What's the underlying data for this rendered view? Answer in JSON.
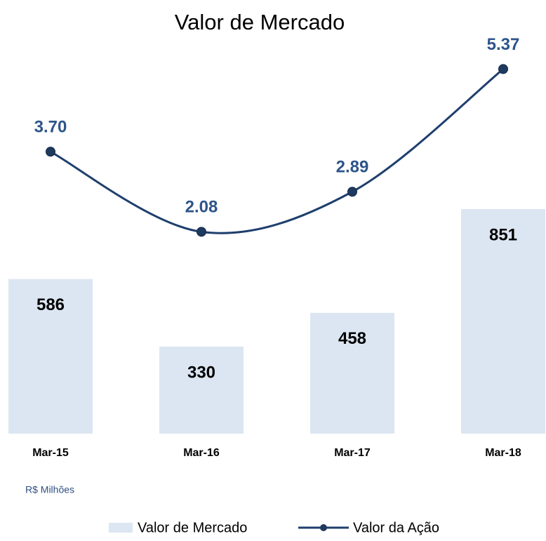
{
  "chart_data": {
    "type": "bar_line",
    "title": "Valor de Mercado",
    "categories": [
      "Mar-15",
      "Mar-16",
      "Mar-17",
      "Mar-18"
    ],
    "series": [
      {
        "name": "Valor de Mercado",
        "type": "bar",
        "color": "#dce6f2",
        "values": [
          586,
          330,
          458,
          851
        ]
      },
      {
        "name": "Valor da Ação",
        "type": "line",
        "axis": "y2",
        "color": "#1f3f6d",
        "values": [
          3.7,
          2.08,
          2.89,
          5.37
        ],
        "value_labels": [
          "3.70",
          "2.08",
          "2.89",
          "5.37"
        ]
      }
    ],
    "ylim": [
      0,
      1500
    ],
    "y2lim": [
      -2,
      6
    ],
    "note": "R$ Milhões",
    "legend": "bottom"
  }
}
